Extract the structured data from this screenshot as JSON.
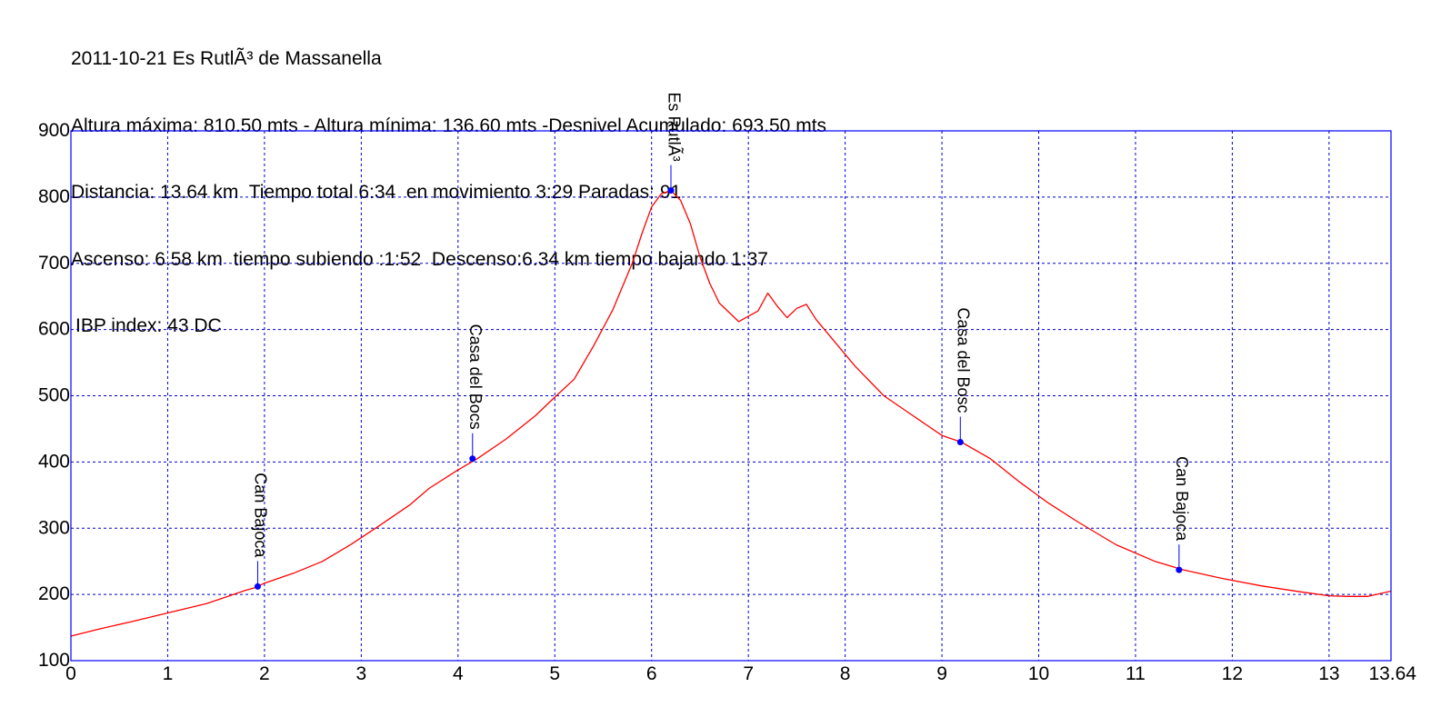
{
  "chart_data": {
    "type": "line",
    "title": "2011-10-21 Es RutlÃ³ de Massanella",
    "info_lines": [
      "Altura máxima: 810.50 mts - Altura mínima: 136.60 mts -Desnivel Acumulado: 693.50 mts",
      "Distancia: 13.64 km  Tiempo total 6:34  en movimiento 3:29 Paradas: 91",
      "Ascenso: 6.58 km  tiempo subiendo :1:52  Descenso:6.34 km tiempo bajando 1:37",
      "IBP index: 43 DC"
    ],
    "xlabel": "",
    "ylabel": "",
    "xlim": [
      0,
      13.64
    ],
    "ylim": [
      100,
      900
    ],
    "x_ticks": [
      "0",
      "1",
      "2",
      "3",
      "4",
      "5",
      "6",
      "7",
      "8",
      "9",
      "10",
      "11",
      "12",
      "13",
      "13.64"
    ],
    "y_ticks": [
      "100",
      "200",
      "300",
      "400",
      "500",
      "600",
      "700",
      "800",
      "900"
    ],
    "grid": true,
    "colors": {
      "profile": "#ff0000",
      "frame": "#0000ff",
      "grid": "#0000cc",
      "waypoint": "#0000ff"
    },
    "series": [
      {
        "x": [
          0,
          0.3,
          0.6,
          1.0,
          1.4,
          1.8,
          1.9,
          2.0,
          2.3,
          2.6,
          2.9,
          3.2,
          3.5,
          3.7,
          4.0,
          4.2,
          4.5,
          4.8,
          5.0,
          5.2,
          5.4,
          5.6,
          5.8,
          5.9,
          6.0,
          6.1,
          6.2,
          6.3,
          6.4,
          6.5,
          6.6,
          6.7,
          6.9,
          7.1,
          7.2,
          7.3,
          7.4,
          7.5,
          7.6,
          7.7,
          7.9,
          8.1,
          8.4,
          8.7,
          9.0,
          9.2,
          9.5,
          9.8,
          10.1,
          10.4,
          10.8,
          11.2,
          11.5,
          11.9,
          12.3,
          12.7,
          13.0,
          13.2,
          13.4,
          13.64
        ],
        "y": [
          137,
          148,
          158,
          172,
          186,
          206,
          210,
          217,
          232,
          250,
          276,
          305,
          335,
          360,
          388,
          405,
          435,
          470,
          498,
          525,
          575,
          630,
          700,
          745,
          785,
          805,
          810,
          795,
          760,
          710,
          670,
          640,
          612,
          628,
          655,
          635,
          618,
          632,
          638,
          615,
          580,
          545,
          500,
          470,
          440,
          430,
          405,
          370,
          338,
          310,
          275,
          250,
          237,
          224,
          213,
          204,
          198,
          197,
          197,
          205
        ]
      }
    ],
    "waypoints": [
      {
        "label": "Can Bajoca",
        "x": 1.93,
        "y": 212
      },
      {
        "label": "Casa del Bocs",
        "x": 4.15,
        "y": 405
      },
      {
        "label": "Es RutlÃ³",
        "x": 6.2,
        "y": 810
      },
      {
        "label": "Casa del Bosc",
        "x": 9.19,
        "y": 430
      },
      {
        "label": "Can Bajoca",
        "x": 11.45,
        "y": 237
      }
    ]
  }
}
